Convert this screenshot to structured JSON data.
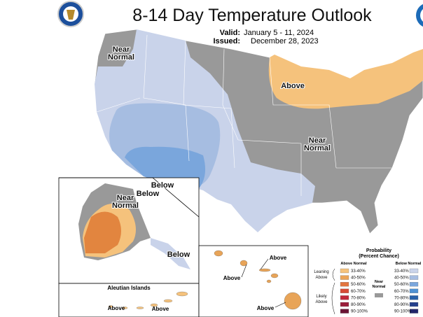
{
  "title": "8-14 Day Temperature Outlook",
  "valid": {
    "label": "Valid:",
    "value": "January 5 - 11, 2024"
  },
  "issued": {
    "label": "Issued:",
    "value": "December 28, 2023"
  },
  "map_labels": [
    {
      "lines": [
        "Near",
        "Normal"
      ]
    },
    {
      "lines": [
        "Above"
      ]
    },
    {
      "lines": [
        "Near",
        "Normal"
      ]
    },
    {
      "lines": [
        "Below"
      ]
    }
  ],
  "alaska_labels": [
    {
      "lines": [
        "Near",
        "Normal"
      ]
    },
    {
      "lines": [
        "Below"
      ]
    },
    {
      "lines": [
        "Below"
      ]
    }
  ],
  "aleutian": {
    "title": "Aleutian Islands",
    "labels": [
      "Above",
      "Above"
    ]
  },
  "hawaii_labels": [
    "Above",
    "Above",
    "Above"
  ],
  "legend": {
    "title": [
      "Probability",
      "(Percent Chance)"
    ],
    "above_heading": "Above Normal",
    "below_heading": "Below Normal",
    "near_label": [
      "Near",
      "Normal"
    ],
    "near_color": "#999999",
    "leaning_label": [
      "Leaning",
      "Above"
    ],
    "likely_label": [
      "Likely",
      "Above"
    ],
    "above": [
      {
        "range": "33-40%",
        "color": "#f5c27c"
      },
      {
        "range": "40-50%",
        "color": "#eba458"
      },
      {
        "range": "50-60%",
        "color": "#e2753f"
      },
      {
        "range": "60-70%",
        "color": "#d74a35"
      },
      {
        "range": "70-80%",
        "color": "#c1283a"
      },
      {
        "range": "80-90%",
        "color": "#9a1d3a"
      },
      {
        "range": "90-100%",
        "color": "#6b1535"
      }
    ],
    "below": [
      {
        "range": "33-40%",
        "color": "#c9d3ea"
      },
      {
        "range": "40-50%",
        "color": "#a6bde1"
      },
      {
        "range": "50-60%",
        "color": "#7aa6dc"
      },
      {
        "range": "60-70%",
        "color": "#4f91d3"
      },
      {
        "range": "70-80%",
        "color": "#2860a8"
      },
      {
        "range": "80-90%",
        "color": "#243f8c"
      },
      {
        "range": "90-100%",
        "color": "#23266a"
      }
    ]
  }
}
